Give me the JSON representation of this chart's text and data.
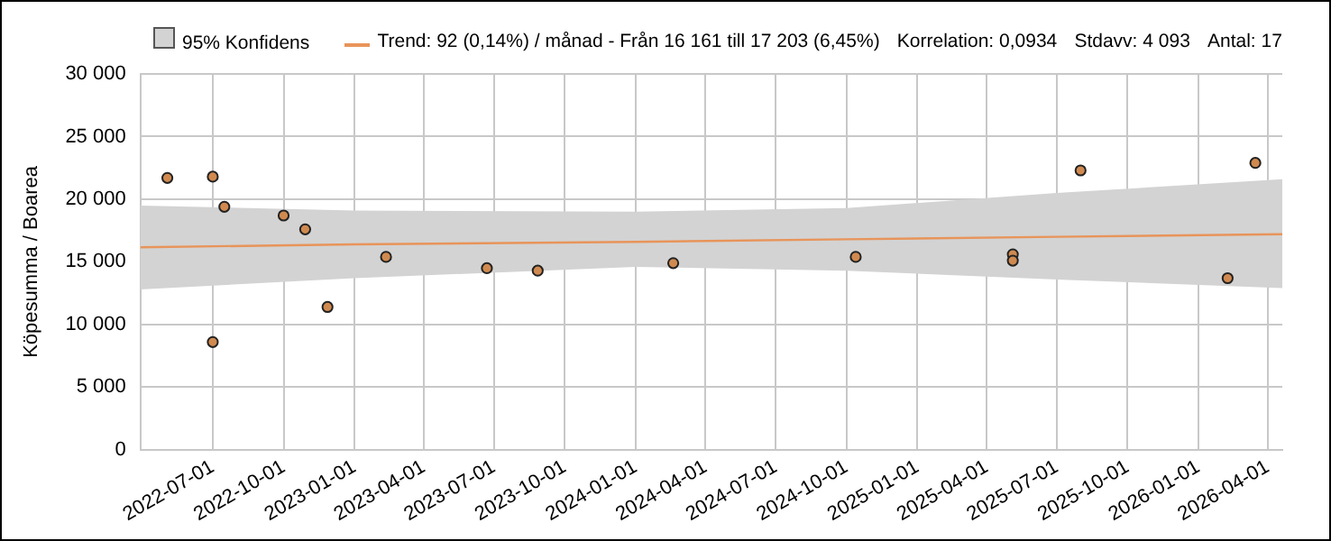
{
  "chart_data": {
    "type": "scatter",
    "ylabel": "Köpesumma / Boarea",
    "series": [
      {
        "color": "#d08a50",
        "x": [
          "2022-05-03",
          "2022-07-01",
          "2022-07-01",
          "2022-07-16",
          "2022-10-01",
          "2022-10-29",
          "2022-11-27",
          "2023-02-11",
          "2023-06-22",
          "2023-08-27",
          "2024-02-19",
          "2024-10-13",
          "2025-05-05",
          "2025-05-05",
          "2025-08-01",
          "2026-02-08",
          "2026-03-16"
        ],
        "values": [
          21700,
          21800,
          8600,
          19400,
          18700,
          17600,
          11400,
          15400,
          14500,
          14300,
          14900,
          15400,
          15600,
          15100,
          22300,
          13700,
          22900
        ]
      },
      {
        "type": "line",
        "marker": "none",
        "name": "Trend: 92 (0,14%) / månad  -  Från 16 161 till 17 203 (6,45%)",
        "color": "#e8945a",
        "x": [
          "2022-03-29",
          "2023-01-01",
          "2024-01-01",
          "2024-10-01",
          "2025-07-01",
          "2026-04-20"
        ],
        "values": [
          16161,
          16400,
          16600,
          16800,
          17000,
          17203
        ],
        "lower": [
          12800,
          13700,
          14600,
          14300,
          13600,
          12900
        ],
        "upper": [
          19500,
          19100,
          19000,
          19300,
          20500,
          21600
        ]
      }
    ],
    "xlim": [
      "2022-03-29",
      "2026-04-20"
    ],
    "xticks": [
      "2022-07-01",
      "2022-10-01",
      "2023-01-01",
      "2023-04-01",
      "2023-07-01",
      "2023-10-01",
      "2024-01-01",
      "2024-04-01",
      "2024-07-01",
      "2024-10-01",
      "2025-01-01",
      "2025-04-01",
      "2025-07-01",
      "2025-10-01",
      "2026-01-01",
      "2026-04-01"
    ],
    "ylim": [
      0,
      30000
    ],
    "yticks": [
      0,
      {
        "value": 5000,
        "label": "5 000"
      },
      {
        "value": 10000,
        "label": "10 000"
      },
      {
        "value": 15000,
        "label": "15 000"
      },
      {
        "value": 20000,
        "label": "20 000"
      },
      {
        "value": 25000,
        "label": "25 000"
      },
      {
        "value": 30000,
        "label": "30 000"
      }
    ],
    "grid": true,
    "legend": "top",
    "marker": "circle",
    "annotations": [
      "95% Konfidens",
      "Korrelation: 0,0934",
      "Stdavv: 4 093",
      "Antal: 17"
    ]
  }
}
